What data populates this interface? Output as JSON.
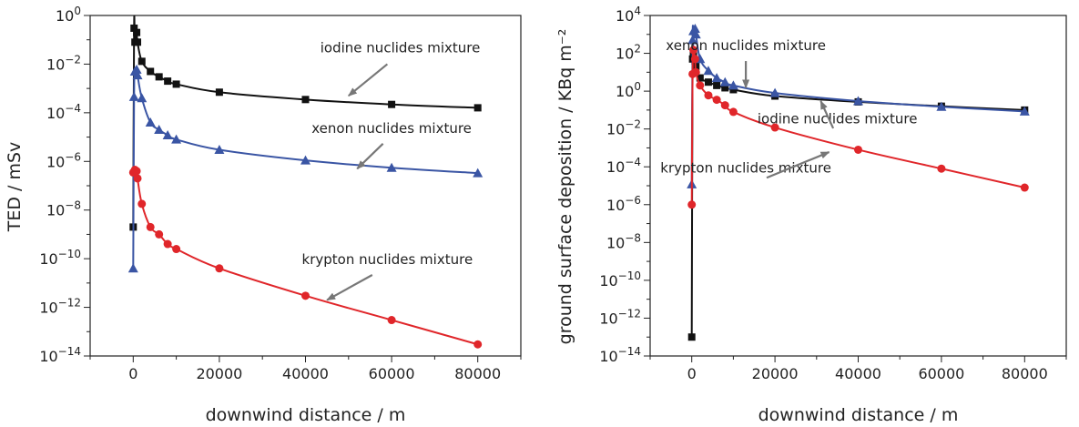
{
  "chart_data": [
    {
      "type": "line",
      "xlabel": "downwind distance / m",
      "ylabel": "TED / mSv",
      "xlim": [
        -10000,
        90000
      ],
      "ylog": true,
      "ylim_exp": [
        -14,
        0
      ],
      "x_ticks": [
        0,
        20000,
        40000,
        60000,
        80000
      ],
      "y_tick_exps": [
        -14,
        -12,
        -10,
        -8,
        -6,
        -4,
        -2,
        0
      ],
      "grid": false,
      "series": [
        {
          "name": "iodine nuclides mixture",
          "color": "#111111",
          "marker": "square",
          "points": [
            [
              0,
              2e-09
            ],
            [
              200,
              0.3
            ],
            [
              400,
              0.08
            ],
            [
              800,
              0.2
            ],
            [
              1000,
              0.08
            ],
            [
              2000,
              0.013
            ],
            [
              4000,
              0.005
            ],
            [
              6000,
              0.003
            ],
            [
              8000,
              0.002
            ],
            [
              10000,
              0.0015
            ],
            [
              20000,
              0.0007
            ],
            [
              40000,
              0.00035
            ],
            [
              60000,
              0.00022
            ],
            [
              80000,
              0.00016
            ]
          ]
        },
        {
          "name": "xenon nuclides mixture",
          "color": "#3a55a4",
          "marker": "triangle",
          "points": [
            [
              0,
              4e-11
            ],
            [
              200,
              0.00045
            ],
            [
              400,
              0.005
            ],
            [
              800,
              0.006
            ],
            [
              1000,
              0.0035
            ],
            [
              2000,
              0.0004
            ],
            [
              4000,
              4e-05
            ],
            [
              6000,
              2e-05
            ],
            [
              8000,
              1.2e-05
            ],
            [
              10000,
              8e-06
            ],
            [
              20000,
              3e-06
            ],
            [
              40000,
              1.1e-06
            ],
            [
              60000,
              5.5e-07
            ],
            [
              80000,
              3.3e-07
            ]
          ]
        },
        {
          "name": "krypton nuclides mixture",
          "color": "#e0262a",
          "marker": "circle",
          "points": [
            [
              0,
              3.5e-07
            ],
            [
              400,
              4.5e-07
            ],
            [
              800,
              4e-07
            ],
            [
              1000,
              2e-07
            ],
            [
              2000,
              1.8e-08
            ],
            [
              4000,
              2e-09
            ],
            [
              6000,
              1e-09
            ],
            [
              8000,
              4e-10
            ],
            [
              10000,
              2.5e-10
            ],
            [
              20000,
              4e-11
            ],
            [
              40000,
              3e-12
            ],
            [
              60000,
              3e-13
            ],
            [
              80000,
              3e-14
            ]
          ]
        }
      ],
      "annotations": [
        {
          "text": "iodine nuclides mixture",
          "x": 62000,
          "y": 0.03,
          "arrow_to": [
            50000,
            0.0005
          ]
        },
        {
          "text": "xenon nuclides mixture",
          "x": 60000,
          "y": 1.5e-05,
          "arrow_to": [
            52000,
            5e-07
          ]
        },
        {
          "text": "krypton nuclides mixture",
          "x": 59000,
          "y": 6e-11,
          "arrow_to": [
            45000,
            2e-12
          ]
        }
      ]
    },
    {
      "type": "line",
      "xlabel": "downwind distance / m",
      "ylabel": "ground surface deposition / KBq m⁻²",
      "xlim": [
        -10000,
        90000
      ],
      "ylog": true,
      "ylim_exp": [
        -14,
        4
      ],
      "x_ticks": [
        0,
        20000,
        40000,
        60000,
        80000
      ],
      "y_tick_exps": [
        -14,
        -12,
        -10,
        -8,
        -6,
        -4,
        -2,
        0,
        2,
        4
      ],
      "grid": false,
      "series": [
        {
          "name": "iodine nuclides mixture",
          "color": "#111111",
          "marker": "square",
          "points": [
            [
              0,
              1e-13
            ],
            [
              200,
              50
            ],
            [
              400,
              80
            ],
            [
              800,
              40
            ],
            [
              1000,
              20
            ],
            [
              2000,
              5
            ],
            [
              4000,
              3
            ],
            [
              6000,
              2
            ],
            [
              8000,
              1.5
            ],
            [
              10000,
              1.2
            ],
            [
              20000,
              0.55
            ],
            [
              40000,
              0.27
            ],
            [
              60000,
              0.16
            ],
            [
              80000,
              0.1
            ]
          ]
        },
        {
          "name": "xenon nuclides mixture",
          "color": "#3a55a4",
          "marker": "triangle",
          "points": [
            [
              0,
              1.2e-05
            ],
            [
              200,
              500
            ],
            [
              400,
              1500
            ],
            [
              800,
              2000
            ],
            [
              1000,
              1000
            ],
            [
              2000,
              50
            ],
            [
              4000,
              12
            ],
            [
              6000,
              5
            ],
            [
              8000,
              3
            ],
            [
              10000,
              2
            ],
            [
              20000,
              0.8
            ],
            [
              40000,
              0.3
            ],
            [
              60000,
              0.15
            ],
            [
              80000,
              0.085
            ]
          ]
        },
        {
          "name": "krypton nuclides mixture",
          "color": "#e0262a",
          "marker": "circle",
          "points": [
            [
              0,
              1e-06
            ],
            [
              200,
              8
            ],
            [
              400,
              150
            ],
            [
              800,
              50
            ],
            [
              1000,
              10
            ],
            [
              2000,
              2
            ],
            [
              4000,
              0.6
            ],
            [
              6000,
              0.35
            ],
            [
              8000,
              0.18
            ],
            [
              10000,
              0.08
            ],
            [
              20000,
              0.012
            ],
            [
              40000,
              0.0008
            ],
            [
              60000,
              8e-05
            ],
            [
              80000,
              8e-06
            ]
          ]
        }
      ],
      "annotations": [
        {
          "text": "xenon nuclides mixture",
          "x": 13000,
          "y": 150,
          "arrow_to": [
            13000,
            1.5
          ]
        },
        {
          "text": "iodine nuclides mixture",
          "x": 35000,
          "y": 0.02,
          "arrow_to": [
            31000,
            0.3
          ]
        },
        {
          "text": "krypton nuclides mixture",
          "x": 13000,
          "y": 5e-05,
          "arrow_to": [
            33000,
            0.0006
          ]
        }
      ]
    }
  ]
}
